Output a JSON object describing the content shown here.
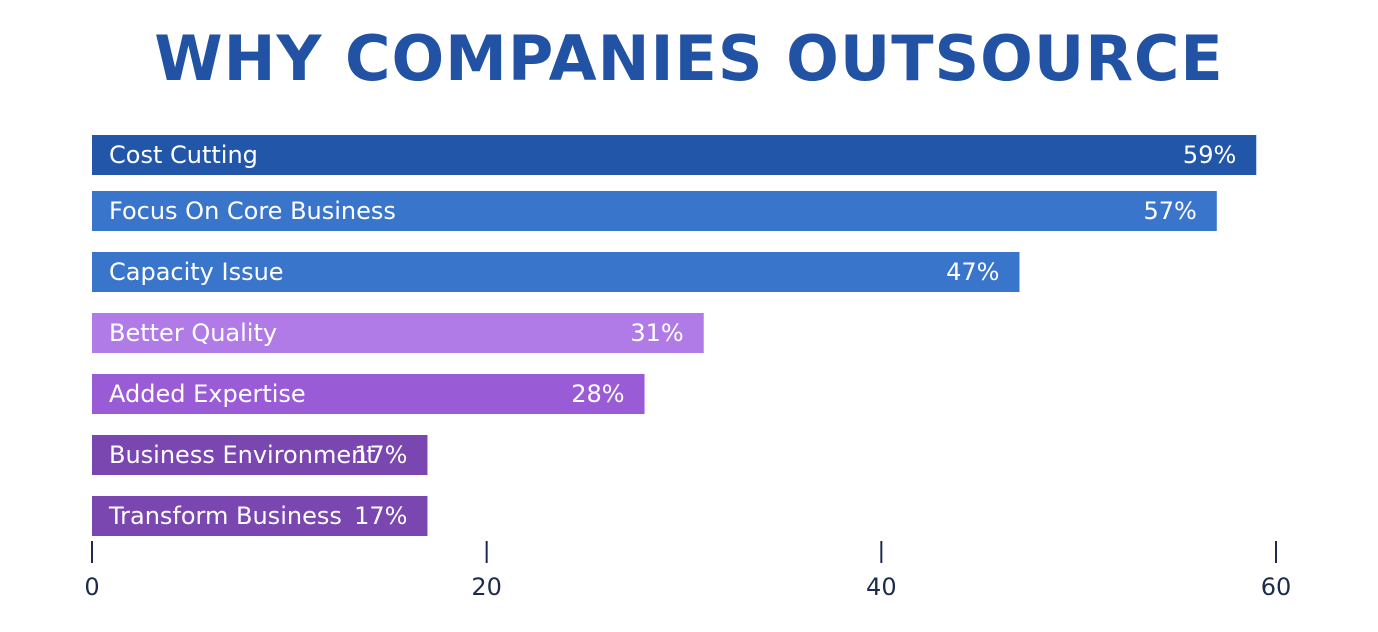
{
  "chart_data": {
    "type": "bar",
    "orientation": "horizontal",
    "title": "WHY COMPANIES OUTSOURCE",
    "categories": [
      "Cost Cutting",
      "Focus On Core Business",
      "Capacity Issue",
      "Better Quality",
      "Added Expertise",
      "Business Environment",
      "Transform Business"
    ],
    "values": [
      59,
      57,
      47,
      31,
      28,
      17,
      17
    ],
    "value_labels": [
      "59%",
      "57%",
      "47%",
      "31%",
      "28%",
      "17%",
      "17%"
    ],
    "bar_colors": [
      "#2156a8",
      "#3a75cc",
      "#3a75cc",
      "#b07be6",
      "#9a5bd6",
      "#7a46b0",
      "#7a46b0"
    ],
    "xlim": [
      0,
      60
    ],
    "x_ticks": [
      0,
      20,
      40,
      60
    ],
    "x_tick_labels": [
      "0",
      "20",
      "40",
      "60"
    ],
    "grid": false,
    "legend": "none"
  },
  "colors": {
    "title": "#2152a3",
    "tick_text": "#1d2b4f",
    "bar_text": "#ffffff"
  }
}
